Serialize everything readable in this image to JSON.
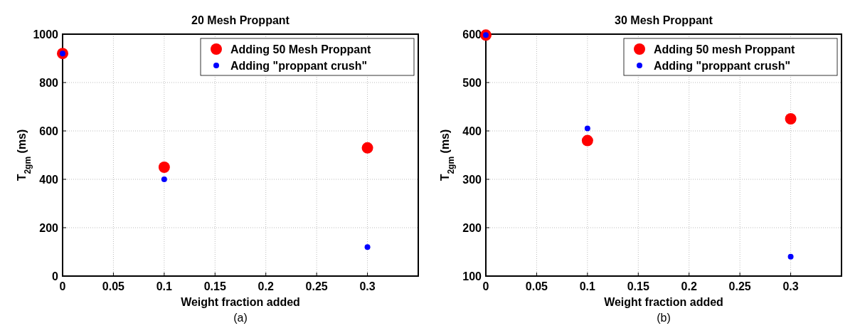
{
  "chart_data": [
    {
      "type": "scatter",
      "title": "20 Mesh Proppant",
      "xlabel": "Weight fraction added",
      "ylabel": "T$_{2gm}$ (ms)",
      "annotations": [
        "(a)"
      ],
      "x": [
        0,
        0.1,
        0.3
      ],
      "xlim": [
        0,
        0.35
      ],
      "xticks": [
        0,
        0.05,
        0.1,
        0.15,
        0.2,
        0.25,
        0.3
      ],
      "ylim": [
        0,
        1000
      ],
      "yticks": [
        0,
        200,
        400,
        600,
        800,
        1000
      ],
      "grid": true,
      "legend": "top right",
      "marker": "circle",
      "series": [
        {
          "name": "Adding 50 Mesh Proppant",
          "color": "#ff0000",
          "values": [
            920,
            450,
            530
          ]
        },
        {
          "name": "Adding \"proppant crush\"",
          "color": "#0000ff",
          "values": [
            920,
            400,
            120
          ]
        }
      ]
    },
    {
      "type": "scatter",
      "title": "30 Mesh Proppant",
      "xlabel": "Weight fraction added",
      "ylabel": "T$_{2gm}$ (ms)",
      "annotations": [
        "(b)"
      ],
      "x": [
        0,
        0.1,
        0.3
      ],
      "xlim": [
        0,
        0.35
      ],
      "xticks": [
        0,
        0.05,
        0.1,
        0.15,
        0.2,
        0.25,
        0.3
      ],
      "ylim": [
        100,
        600
      ],
      "yticks": [
        100,
        200,
        300,
        400,
        500,
        600
      ],
      "grid": true,
      "legend": "top right",
      "marker": "circle",
      "series": [
        {
          "name": "Adding 50 mesh Proppant",
          "color": "#ff0000",
          "values": [
            598,
            380,
            425
          ]
        },
        {
          "name": "Adding \"proppant crush\"",
          "color": "#0000ff",
          "values": [
            598,
            405,
            140
          ]
        }
      ]
    }
  ]
}
